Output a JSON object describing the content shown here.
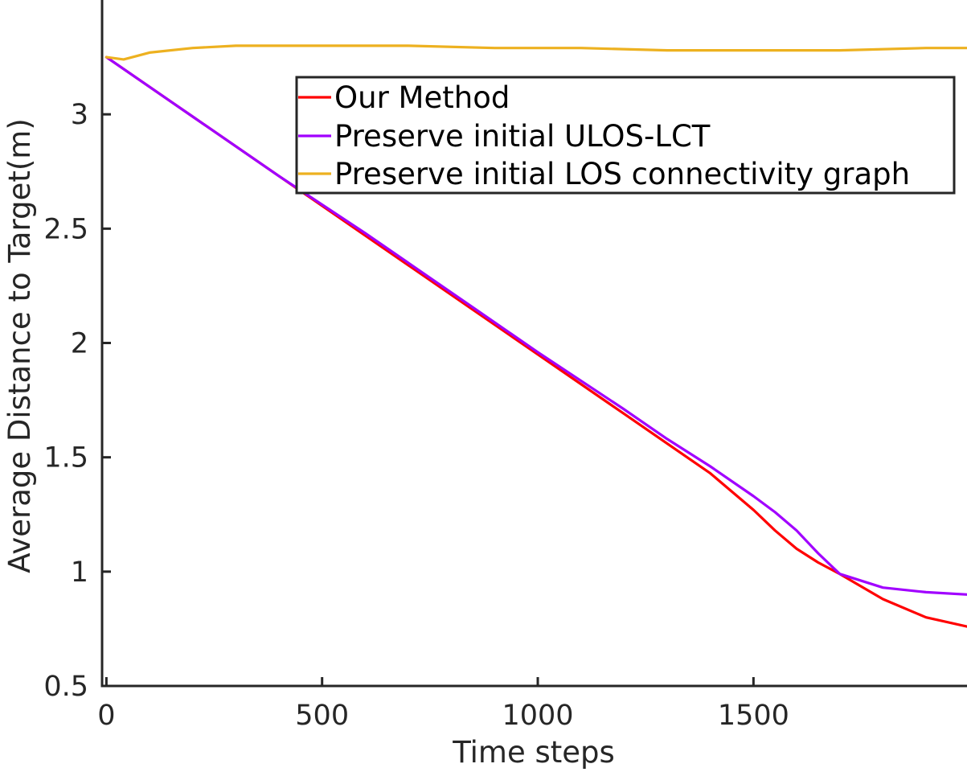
{
  "chart_data": {
    "type": "line",
    "title": "",
    "xlabel": "Time steps",
    "ylabel": "Average Distance to Target(m)",
    "xlim": [
      -10,
      1995
    ],
    "ylim": [
      0.5,
      3.5
    ],
    "xticks": [
      0,
      500,
      1000,
      1500
    ],
    "xtick_labels": [
      "0",
      "500",
      "1000",
      "1500"
    ],
    "yticks": [
      0.5,
      1,
      1.5,
      2,
      2.5,
      3
    ],
    "ytick_labels": [
      "0.5",
      "1",
      "1.5",
      "2",
      "2.5",
      "3"
    ],
    "grid": false,
    "legend_position": "upper-right",
    "series": [
      {
        "name": "Our Method",
        "color": "#ff0000",
        "x": [
          0,
          200,
          400,
          600,
          800,
          1000,
          1200,
          1300,
          1400,
          1500,
          1550,
          1600,
          1650,
          1700,
          1800,
          1900,
          1995
        ],
        "y": [
          3.25,
          2.99,
          2.73,
          2.47,
          2.21,
          1.95,
          1.69,
          1.56,
          1.43,
          1.27,
          1.18,
          1.1,
          1.04,
          0.99,
          0.88,
          0.8,
          0.76
        ]
      },
      {
        "name": "Preserve initial ULOS-LCT",
        "color": "#a100ff",
        "x": [
          0,
          200,
          400,
          600,
          800,
          1000,
          1200,
          1300,
          1400,
          1500,
          1550,
          1600,
          1650,
          1700,
          1800,
          1900,
          1995
        ],
        "y": [
          3.25,
          2.99,
          2.73,
          2.48,
          2.22,
          1.96,
          1.71,
          1.58,
          1.46,
          1.33,
          1.26,
          1.18,
          1.08,
          0.99,
          0.93,
          0.91,
          0.9
        ]
      },
      {
        "name": "Preserve initial LOS connectivity graph",
        "color": "#edb120",
        "x": [
          0,
          40,
          100,
          200,
          300,
          500,
          700,
          900,
          1100,
          1300,
          1500,
          1700,
          1900,
          1995
        ],
        "y": [
          3.25,
          3.24,
          3.27,
          3.29,
          3.3,
          3.3,
          3.3,
          3.29,
          3.29,
          3.28,
          3.28,
          3.28,
          3.29,
          3.29
        ]
      }
    ]
  }
}
